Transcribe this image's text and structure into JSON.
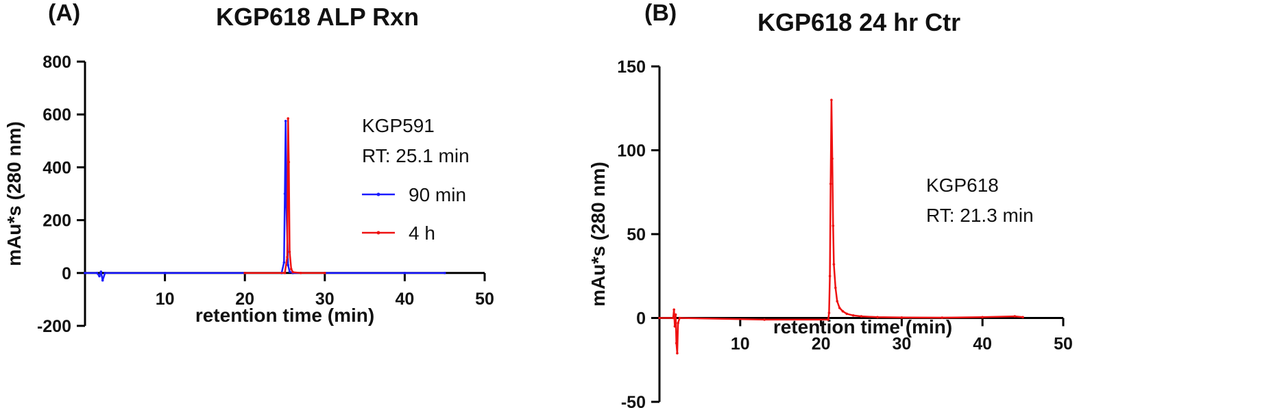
{
  "chart_data": [
    {
      "type": "line",
      "panel_label": "(A)",
      "title": "KGP618 ALP Rxn",
      "xlabel": "retention time (min)",
      "ylabel": "mAu*s (280 nm)",
      "xlim": [
        0,
        50
      ],
      "ylim": [
        -200,
        800
      ],
      "xticks": [
        10,
        20,
        30,
        40,
        50
      ],
      "yticks": [
        -200,
        0,
        200,
        400,
        600,
        800
      ],
      "annotation": [
        "KGP591",
        "RT: 25.1 min"
      ],
      "legend_position": "right",
      "series": [
        {
          "name": "90 min",
          "color": "#1a1aff",
          "x": [
            0,
            1.5,
            1.8,
            2.0,
            2.2,
            2.5,
            10,
            20,
            24.6,
            24.9,
            25.0,
            25.1,
            25.2,
            25.4,
            25.6,
            26,
            30,
            40,
            45
          ],
          "y": [
            0,
            0,
            -12,
            5,
            -28,
            0,
            0,
            0,
            0,
            40,
            300,
            575,
            250,
            30,
            5,
            0,
            0,
            0,
            0
          ]
        },
        {
          "name": "4 h",
          "color": "#ee1111",
          "x": [
            20,
            25.0,
            25.3,
            25.4,
            25.5,
            25.6,
            25.8,
            26.0,
            27,
            30
          ],
          "y": [
            0,
            0,
            60,
            585,
            420,
            80,
            15,
            3,
            0,
            0
          ]
        }
      ]
    },
    {
      "type": "line",
      "panel_label": "(B)",
      "title": "KGP618 24 hr Ctr",
      "xlabel": "retention time (min)",
      "ylabel": "mAu*s (280 nm)",
      "xlim": [
        0,
        50
      ],
      "ylim": [
        -50,
        150
      ],
      "xticks": [
        10,
        20,
        30,
        40,
        50
      ],
      "yticks": [
        -50,
        0,
        50,
        100,
        150
      ],
      "annotation": [
        "KGP618",
        "RT: 21.3 min"
      ],
      "series": [
        {
          "color": "#ee1111",
          "x": [
            0,
            1.7,
            1.8,
            1.9,
            2.0,
            2.1,
            2.2,
            2.3,
            2.5,
            13,
            20.9,
            21.0,
            21.1,
            21.2,
            21.3,
            21.4,
            21.5,
            21.6,
            21.8,
            22.0,
            22.3,
            22.7,
            23.2,
            24,
            25,
            27,
            30,
            35,
            40,
            44,
            45
          ],
          "y": [
            0,
            0,
            5,
            -5,
            2,
            -15,
            -21,
            -3,
            0,
            -1,
            -1,
            3,
            25,
            80,
            130,
            95,
            55,
            32,
            18,
            10,
            6,
            4,
            2.5,
            1.5,
            1,
            0.5,
            0.3,
            0.2,
            0.5,
            1,
            0.5
          ]
        }
      ]
    }
  ]
}
